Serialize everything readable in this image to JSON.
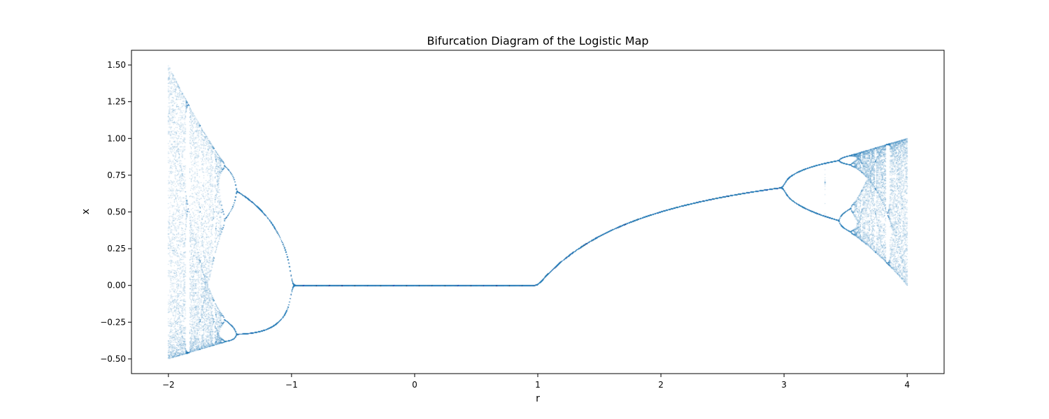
{
  "chart_data": {
    "type": "scatter",
    "title": "Bifurcation Diagram of the Logistic Map",
    "xlabel": "r",
    "ylabel": "x",
    "xlim": [
      -2.3,
      4.3
    ],
    "ylim": [
      -0.6,
      1.6
    ],
    "x_ticks": [
      -2,
      -1,
      0,
      1,
      2,
      3,
      4
    ],
    "x_tick_labels": [
      "−2",
      "−1",
      "0",
      "1",
      "2",
      "3",
      "4"
    ],
    "y_ticks": [
      -0.5,
      -0.25,
      0.0,
      0.25,
      0.5,
      0.75,
      1.0,
      1.25,
      1.5
    ],
    "y_tick_labels": [
      "−0.50",
      "−0.25",
      "0.00",
      "0.25",
      "0.50",
      "0.75",
      "1.00",
      "1.25",
      "1.50"
    ],
    "grid": false,
    "marker_color": "#1f77b4",
    "series": [
      {
        "map": "x_next = r * x * (1 - x)",
        "r_range": [
          -2,
          4
        ],
        "r_samples": 1000,
        "x0": 0.1,
        "iterations": 200,
        "plotted_last": 100
      }
    ]
  }
}
